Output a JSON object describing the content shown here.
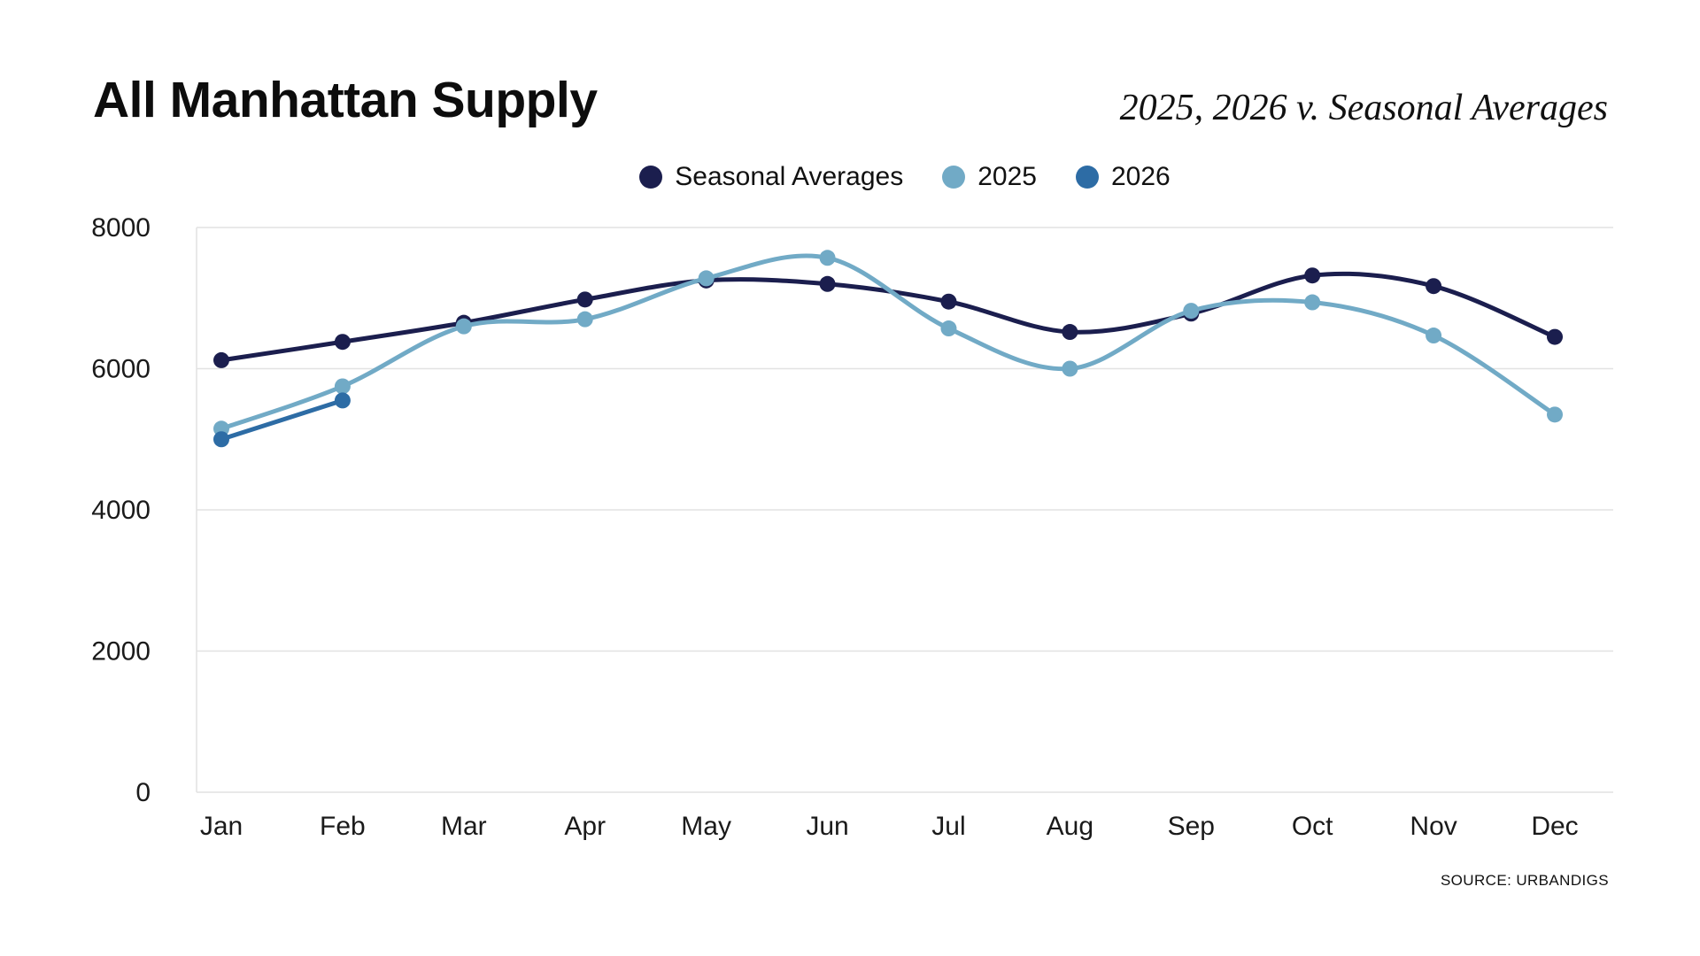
{
  "footer": {
    "source": "SOURCE: URBANDIGS"
  },
  "chart_data": {
    "type": "line",
    "title": "All Manhattan Supply",
    "subtitle": "2025, 2026 v. Seasonal Averages",
    "categories": [
      "Jan",
      "Feb",
      "Mar",
      "Apr",
      "May",
      "Jun",
      "Jul",
      "Aug",
      "Sep",
      "Oct",
      "Nov",
      "Dec"
    ],
    "series": [
      {
        "name": "Seasonal Averages",
        "color": "#1b1e4e",
        "values": [
          6120,
          6380,
          6650,
          6980,
          7250,
          7200,
          6950,
          6520,
          6780,
          7320,
          7170,
          6450
        ]
      },
      {
        "name": "2025",
        "color": "#71aac6",
        "values": [
          5150,
          5750,
          6600,
          6700,
          7280,
          7570,
          6570,
          6000,
          6820,
          6940,
          6470,
          5350
        ]
      },
      {
        "name": "2026",
        "color": "#2d6ca5",
        "values": [
          5000,
          5550,
          null,
          null,
          null,
          null,
          null,
          null,
          null,
          null,
          null,
          null
        ]
      }
    ],
    "ylim": [
      0,
      8000
    ],
    "yticks": [
      0,
      2000,
      4000,
      6000,
      8000
    ],
    "grid": true,
    "legend_position": "top",
    "axis_color": "#e2e2e2",
    "tick_label_color": "#1a1a1a",
    "source": "SOURCE: URBANDIGS"
  }
}
